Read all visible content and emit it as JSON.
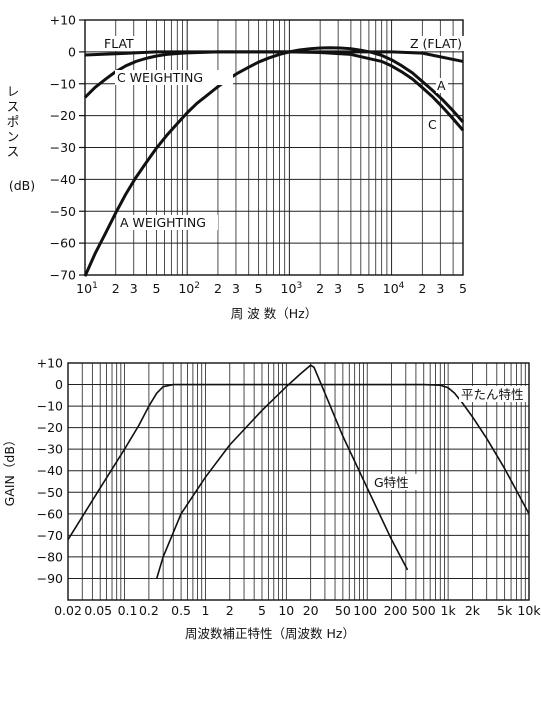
{
  "chart_data": [
    {
      "type": "line",
      "x_scale": "log",
      "xlim": [
        10,
        50000
      ],
      "ylim": [
        -70,
        10
      ],
      "ylabel": "レスポンス",
      "yunit": "(dB)",
      "xlabel": "周 波 数（Hz）",
      "y_ticks": [
        "+10",
        "0",
        "−10",
        "−20",
        "−30",
        "−40",
        "−50",
        "−60",
        "−70"
      ],
      "x_ticks": [
        {
          "x": 10,
          "label": "10",
          "sup": "1"
        },
        {
          "x": 20,
          "label": "2"
        },
        {
          "x": 30,
          "label": "3"
        },
        {
          "x": 50,
          "label": "5"
        },
        {
          "x": 100,
          "label": "10",
          "sup": "2"
        },
        {
          "x": 200,
          "label": "2"
        },
        {
          "x": 300,
          "label": "3"
        },
        {
          "x": 500,
          "label": "5"
        },
        {
          "x": 1000,
          "label": "10",
          "sup": "3"
        },
        {
          "x": 2000,
          "label": "2"
        },
        {
          "x": 3000,
          "label": "3"
        },
        {
          "x": 5000,
          "label": "5"
        },
        {
          "x": 10000,
          "label": "10",
          "sup": "4"
        },
        {
          "x": 20000,
          "label": "2"
        },
        {
          "x": 30000,
          "label": "3"
        },
        {
          "x": 50000,
          "label": "5"
        }
      ],
      "series": [
        {
          "name": "FLAT",
          "end_label": "Z (FLAT)",
          "x": [
            10,
            20,
            50,
            100,
            1000,
            10000,
            20000,
            50000
          ],
          "y": [
            -1,
            -0.6,
            0,
            0,
            0,
            0,
            -0.4,
            -3
          ]
        },
        {
          "name": "C WEIGHTING",
          "end_label": "C",
          "x": [
            10,
            12.5,
            16,
            20,
            25,
            31.5,
            40,
            50,
            63,
            80,
            100,
            200,
            500,
            1000,
            2000,
            4000,
            8000,
            10000,
            12500,
            16000,
            20000,
            25000,
            31500,
            40000,
            50000
          ],
          "y": [
            -14.3,
            -11.2,
            -8.5,
            -6.2,
            -4.4,
            -3.0,
            -2.0,
            -1.3,
            -0.8,
            -0.5,
            -0.3,
            0,
            0,
            0,
            -0.2,
            -0.8,
            -3.0,
            -4.4,
            -6.2,
            -8.5,
            -11.2,
            -14.0,
            -17.3,
            -21.0,
            -24.6
          ]
        },
        {
          "name": "A WEIGHTING",
          "end_label": "A",
          "x": [
            10,
            12.5,
            16,
            20,
            25,
            31.5,
            40,
            50,
            63,
            80,
            100,
            125,
            160,
            200,
            250,
            315,
            400,
            500,
            630,
            800,
            1000,
            1250,
            1600,
            2000,
            2500,
            3150,
            4000,
            5000,
            6300,
            8000,
            10000,
            12500,
            16000,
            20000,
            25000,
            31500,
            40000,
            50000
          ],
          "y": [
            -70.4,
            -63.4,
            -56.7,
            -50.5,
            -44.7,
            -39.4,
            -34.6,
            -30.2,
            -26.2,
            -22.5,
            -19.1,
            -16.1,
            -13.4,
            -10.9,
            -8.6,
            -6.6,
            -4.8,
            -3.2,
            -1.9,
            -0.8,
            0,
            0.6,
            1.0,
            1.2,
            1.3,
            1.2,
            1.0,
            0.5,
            -0.1,
            -1.1,
            -2.5,
            -4.3,
            -6.6,
            -9.3,
            -12.0,
            -15.0,
            -18.5,
            -22.0
          ]
        }
      ]
    },
    {
      "type": "line",
      "x_scale": "log",
      "xlim": [
        0.02,
        10000
      ],
      "ylim": [
        -100,
        10
      ],
      "ylabel": "GAIN（dB）",
      "xlabel": "周波数補正特性（周波数 Hz）",
      "y_ticks": [
        "+10",
        "0",
        "−10",
        "−20",
        "−30",
        "−40",
        "−50",
        "−60",
        "−70",
        "−80",
        "−90"
      ],
      "x_ticks": [
        {
          "x": 0.02,
          "label": "0.02"
        },
        {
          "x": 0.05,
          "label": "0.05"
        },
        {
          "x": 0.1,
          "label": "0.1"
        },
        {
          "x": 0.2,
          "label": "0.2"
        },
        {
          "x": 0.5,
          "label": "0.5"
        },
        {
          "x": 1,
          "label": "1"
        },
        {
          "x": 2,
          "label": "2"
        },
        {
          "x": 5,
          "label": "5"
        },
        {
          "x": 10,
          "label": "10"
        },
        {
          "x": 20,
          "label": "20"
        },
        {
          "x": 50,
          "label": "50"
        },
        {
          "x": 100,
          "label": "100"
        },
        {
          "x": 200,
          "label": "200"
        },
        {
          "x": 500,
          "label": "500"
        },
        {
          "x": 1000,
          "label": "1k"
        },
        {
          "x": 2000,
          "label": "2k"
        },
        {
          "x": 5000,
          "label": "5k"
        },
        {
          "x": 10000,
          "label": "10k"
        }
      ],
      "series": [
        {
          "name": "平たん特性",
          "x": [
            0.02,
            0.05,
            0.1,
            0.15,
            0.2,
            0.25,
            0.3,
            0.4,
            1,
            10,
            100,
            500,
            800,
            1000,
            1200,
            1500,
            2000,
            3000,
            5000,
            10000
          ],
          "y": [
            -72,
            -48,
            -30,
            -19,
            -10,
            -4,
            -1,
            0,
            0,
            0,
            0,
            0,
            -0.3,
            -1.5,
            -4,
            -8.5,
            -15,
            -25,
            -39,
            -60
          ]
        },
        {
          "name": "G特性",
          "x": [
            0.25,
            0.3,
            0.5,
            1,
            2,
            5,
            10,
            15,
            20,
            22,
            30,
            50,
            100,
            200,
            315
          ],
          "y": [
            -90,
            -80,
            -60,
            -43,
            -28,
            -12,
            -1,
            5,
            9,
            8,
            -4,
            -24,
            -48,
            -72,
            -86
          ]
        }
      ]
    }
  ]
}
